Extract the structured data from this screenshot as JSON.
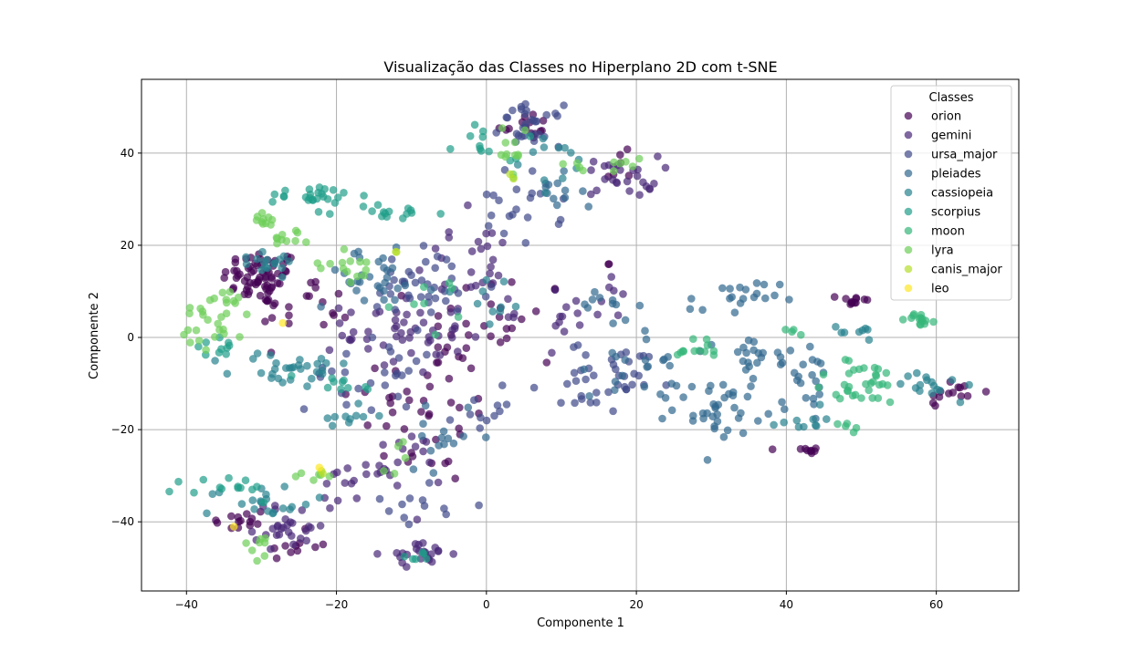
{
  "chart_data": {
    "type": "scatter",
    "title": "Visualização das Classes no Hiperplano 2D com t-SNE",
    "xlabel": "Componente 1",
    "ylabel": "Componente 2",
    "xlim": [
      -46,
      71
    ],
    "ylim": [
      -55,
      56
    ],
    "x_ticks": [
      -40,
      -20,
      0,
      20,
      40,
      60
    ],
    "y_ticks": [
      -40,
      -20,
      0,
      20,
      40
    ],
    "grid": true,
    "legend": {
      "title": "Classes",
      "placement": "top-right"
    },
    "point_opacity": 0.7,
    "series": [
      {
        "name": "orion",
        "color": "#440154",
        "clusters": [
          {
            "x": -30,
            "y": 13,
            "sx": 2.6,
            "sy": 3.0,
            "n": 70
          },
          {
            "x": 5,
            "y": 46,
            "sx": 1.8,
            "sy": 1.5,
            "n": 14
          },
          {
            "x": 49,
            "y": 8,
            "sx": 1.0,
            "sy": 0.7,
            "n": 12
          },
          {
            "x": 43,
            "y": -24.5,
            "sx": 1.2,
            "sy": 0.5,
            "n": 9
          },
          {
            "x": 62,
            "y": -12,
            "sx": 2.0,
            "sy": 1.6,
            "n": 14
          },
          {
            "x": -33,
            "y": -40,
            "sx": 2.0,
            "sy": 1.6,
            "n": 14
          },
          {
            "x": -8,
            "y": -15,
            "sx": 5.0,
            "sy": 9.0,
            "n": 40
          },
          {
            "x": 1,
            "y": 3,
            "sx": 5.0,
            "sy": 6.0,
            "n": 28
          },
          {
            "x": -24,
            "y": 6,
            "sx": 3.0,
            "sy": 4.0,
            "n": 18
          },
          {
            "x": 17,
            "y": 36,
            "sx": 2.0,
            "sy": 2.0,
            "n": 6
          },
          {
            "x": 16.5,
            "y": 16,
            "sx": 0.2,
            "sy": 0.2,
            "n": 2
          },
          {
            "x": -26,
            "y": -45,
            "sx": 3.0,
            "sy": 1.5,
            "n": 10
          }
        ]
      },
      {
        "name": "gemini",
        "color": "#482878",
        "clusters": [
          {
            "x": -11,
            "y": 1,
            "sx": 4.0,
            "sy": 4.5,
            "n": 50
          },
          {
            "x": -9,
            "y": -47,
            "sx": 2.2,
            "sy": 1.2,
            "n": 24
          },
          {
            "x": -26,
            "y": -41,
            "sx": 2.5,
            "sy": 2.5,
            "n": 28
          },
          {
            "x": 18,
            "y": 35,
            "sx": 2.5,
            "sy": 2.2,
            "n": 26
          },
          {
            "x": -12,
            "y": -28,
            "sx": 3.0,
            "sy": 4.0,
            "n": 20
          },
          {
            "x": -2,
            "y": 16,
            "sx": 4.0,
            "sy": 5.0,
            "n": 25
          },
          {
            "x": 12,
            "y": 6,
            "sx": 4.0,
            "sy": 4.0,
            "n": 20
          },
          {
            "x": -19,
            "y": -32,
            "sx": 2.0,
            "sy": 2.0,
            "n": 12
          }
        ]
      },
      {
        "name": "ursa_major",
        "color": "#3e4989",
        "clusters": [
          {
            "x": 6,
            "y": 46,
            "sx": 2.0,
            "sy": 2.2,
            "n": 30
          },
          {
            "x": -8,
            "y": 10,
            "sx": 4.5,
            "sy": 5.0,
            "n": 40
          },
          {
            "x": 18,
            "y": -7,
            "sx": 3.5,
            "sy": 3.0,
            "n": 32
          },
          {
            "x": 4,
            "y": 28,
            "sx": 3.0,
            "sy": 4.0,
            "n": 20
          },
          {
            "x": -16,
            "y": -8,
            "sx": 4.0,
            "sy": 4.0,
            "n": 25
          },
          {
            "x": -10,
            "y": -36,
            "sx": 3.0,
            "sy": 3.0,
            "n": 12
          },
          {
            "x": 2,
            "y": -15,
            "sx": 3.0,
            "sy": 3.0,
            "n": 12
          },
          {
            "x": 14,
            "y": -14,
            "sx": 2.0,
            "sy": 2.0,
            "n": 8
          }
        ]
      },
      {
        "name": "pleiades",
        "color": "#31688e",
        "clusters": [
          {
            "x": 31,
            "y": -15,
            "sx": 3.0,
            "sy": 3.0,
            "n": 40
          },
          {
            "x": 33,
            "y": 8,
            "sx": 3.0,
            "sy": 2.2,
            "n": 20
          },
          {
            "x": 36,
            "y": -5,
            "sx": 2.5,
            "sy": 3.0,
            "n": 22
          },
          {
            "x": 43,
            "y": -10,
            "sx": 1.8,
            "sy": 5.0,
            "n": 18
          },
          {
            "x": -15,
            "y": 13,
            "sx": 4.0,
            "sy": 3.0,
            "n": 30
          },
          {
            "x": 20,
            "y": -5,
            "sx": 3.0,
            "sy": 4.0,
            "n": 20
          },
          {
            "x": -5,
            "y": -22,
            "sx": 3.0,
            "sy": 3.0,
            "n": 15
          },
          {
            "x": 8,
            "y": 30,
            "sx": 2.5,
            "sy": 2.5,
            "n": 12
          },
          {
            "x": 16,
            "y": 7,
            "sx": 2.0,
            "sy": 2.0,
            "n": 10
          }
        ]
      },
      {
        "name": "cassiopeia",
        "color": "#26828e",
        "clusters": [
          {
            "x": -26,
            "y": -7,
            "sx": 4.0,
            "sy": 2.0,
            "n": 30
          },
          {
            "x": -30,
            "y": 17,
            "sx": 3.0,
            "sy": 1.5,
            "n": 16
          },
          {
            "x": -30,
            "y": -36,
            "sx": 3.5,
            "sy": 2.0,
            "n": 20
          },
          {
            "x": 60,
            "y": -10,
            "sx": 2.5,
            "sy": 2.0,
            "n": 16
          },
          {
            "x": 42,
            "y": -18,
            "sx": 1.5,
            "sy": 1.0,
            "n": 10
          },
          {
            "x": -18,
            "y": -17,
            "sx": 2.0,
            "sy": 2.0,
            "n": 10
          },
          {
            "x": 10,
            "y": 38,
            "sx": 3.0,
            "sy": 3.0,
            "n": 12
          },
          {
            "x": 50,
            "y": 1,
            "sx": 1.5,
            "sy": 1.0,
            "n": 8
          },
          {
            "x": 0,
            "y": 8,
            "sx": 3.0,
            "sy": 3.0,
            "n": 10
          }
        ]
      },
      {
        "name": "scorpius",
        "color": "#1f9e89",
        "clusters": [
          {
            "x": -23,
            "y": 31,
            "sx": 3.0,
            "sy": 1.0,
            "n": 24
          },
          {
            "x": -13,
            "y": 27,
            "sx": 3.0,
            "sy": 1.0,
            "n": 16
          },
          {
            "x": -34,
            "y": -33,
            "sx": 3.0,
            "sy": 1.5,
            "n": 14
          },
          {
            "x": -37,
            "y": -2,
            "sx": 2.0,
            "sy": 2.0,
            "n": 10
          },
          {
            "x": 2,
            "y": 42,
            "sx": 3.0,
            "sy": 2.0,
            "n": 12
          },
          {
            "x": -20,
            "y": -10,
            "sx": 3.0,
            "sy": 1.5,
            "n": 10
          },
          {
            "x": -9,
            "y": -48,
            "sx": 1.5,
            "sy": 1.0,
            "n": 6
          }
        ]
      },
      {
        "name": "moon",
        "color": "#35b779",
        "clusters": [
          {
            "x": 50,
            "y": -10,
            "sx": 3.5,
            "sy": 2.5,
            "n": 32
          },
          {
            "x": 58,
            "y": 4,
            "sx": 1.0,
            "sy": 0.7,
            "n": 14
          },
          {
            "x": 28,
            "y": -2,
            "sx": 2.0,
            "sy": 1.5,
            "n": 12
          },
          {
            "x": 48,
            "y": -20,
            "sx": 1.0,
            "sy": 0.8,
            "n": 5
          },
          {
            "x": 41,
            "y": 1,
            "sx": 0.7,
            "sy": 1.0,
            "n": 4
          },
          {
            "x": -5,
            "y": 7,
            "sx": 3.0,
            "sy": 3.0,
            "n": 8
          }
        ]
      },
      {
        "name": "lyra",
        "color": "#6ece58",
        "clusters": [
          {
            "x": -36,
            "y": 4,
            "sx": 2.5,
            "sy": 3.5,
            "n": 30
          },
          {
            "x": -30,
            "y": 26,
            "sx": 1.5,
            "sy": 1.0,
            "n": 10
          },
          {
            "x": -26,
            "y": 22,
            "sx": 1.2,
            "sy": 1.2,
            "n": 10
          },
          {
            "x": -18,
            "y": 16,
            "sx": 2.0,
            "sy": 2.0,
            "n": 14
          },
          {
            "x": 19,
            "y": 38,
            "sx": 1.0,
            "sy": 0.8,
            "n": 6
          },
          {
            "x": 3,
            "y": 40,
            "sx": 1.5,
            "sy": 2.5,
            "n": 12
          },
          {
            "x": -31,
            "y": -45,
            "sx": 1.5,
            "sy": 1.5,
            "n": 8
          },
          {
            "x": 12,
            "y": 37,
            "sx": 1.0,
            "sy": 0.8,
            "n": 4
          },
          {
            "x": -22,
            "y": -30,
            "sx": 2.0,
            "sy": 2.0,
            "n": 6
          },
          {
            "x": -12,
            "y": -25,
            "sx": 2.0,
            "sy": 2.0,
            "n": 5
          }
        ]
      },
      {
        "name": "canis_major",
        "color": "#b5de2b",
        "clusters": [
          {
            "x": -22,
            "y": -29,
            "sx": 0.5,
            "sy": 0.5,
            "n": 2
          },
          {
            "x": -12,
            "y": 18.5,
            "sx": 0.3,
            "sy": 0.3,
            "n": 2
          },
          {
            "x": 3,
            "y": 35,
            "sx": 0.5,
            "sy": 0.5,
            "n": 2
          }
        ]
      },
      {
        "name": "leo",
        "color": "#fde725",
        "clusters": [
          {
            "x": -27,
            "y": 3,
            "sx": 0.2,
            "sy": 0.2,
            "n": 1
          },
          {
            "x": -33.5,
            "y": -41,
            "sx": 0.2,
            "sy": 0.2,
            "n": 1
          },
          {
            "x": -22,
            "y": -28,
            "sx": 0.2,
            "sy": 0.2,
            "n": 1
          }
        ]
      }
    ]
  }
}
